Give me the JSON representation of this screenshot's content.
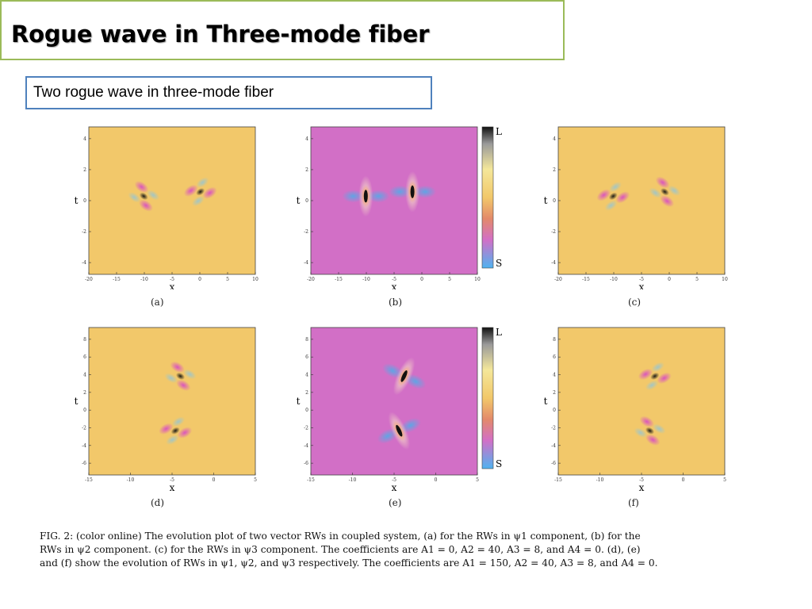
{
  "slide": {
    "title": "Rogue wave in Three-mode fiber",
    "subtitle": "Two rogue wave in three-mode fiber"
  },
  "figure": {
    "panels": [
      {
        "label": "(a)",
        "row": 1,
        "colormap": "yellow",
        "xlabel": "x",
        "ylabel": "t",
        "xticks": [
          "-20",
          "-15",
          "-10",
          "-5",
          "0",
          "5",
          "10"
        ],
        "yticks": [
          "4",
          "2",
          "0",
          "-2",
          "-4"
        ]
      },
      {
        "label": "(b)",
        "row": 1,
        "colormap": "magenta",
        "xlabel": "x",
        "ylabel": "t",
        "xticks": [
          "-20",
          "-15",
          "-10",
          "-5",
          "0",
          "5",
          "10"
        ],
        "yticks": [
          "4",
          "2",
          "0",
          "-2",
          "-4"
        ],
        "colorbar": {
          "top": "L",
          "bottom": "S"
        }
      },
      {
        "label": "(c)",
        "row": 1,
        "colormap": "yellow",
        "xlabel": "x",
        "ylabel": "t",
        "xticks": [
          "-20",
          "-15",
          "-10",
          "-5",
          "0",
          "5",
          "10"
        ],
        "yticks": [
          "4",
          "2",
          "0",
          "-2",
          "-4"
        ]
      },
      {
        "label": "(d)",
        "row": 2,
        "colormap": "yellow",
        "xlabel": "x",
        "ylabel": "t",
        "xticks": [
          "-15",
          "-10",
          "-5",
          "0",
          "5"
        ],
        "yticks": [
          "8",
          "6",
          "4",
          "2",
          "0",
          "-2",
          "-4",
          "-6"
        ]
      },
      {
        "label": "(e)",
        "row": 2,
        "colormap": "magenta",
        "xlabel": "x",
        "ylabel": "t",
        "xticks": [
          "-15",
          "-10",
          "-5",
          "0",
          "5"
        ],
        "yticks": [
          "8",
          "6",
          "4",
          "2",
          "0",
          "-2",
          "-4",
          "-6"
        ],
        "colorbar": {
          "top": "L",
          "bottom": "S"
        }
      },
      {
        "label": "(f)",
        "row": 2,
        "colormap": "yellow",
        "xlabel": "x",
        "ylabel": "t",
        "xticks": [
          "-15",
          "-10",
          "-5",
          "0",
          "5"
        ],
        "yticks": [
          "8",
          "6",
          "4",
          "2",
          "0",
          "-2",
          "-4",
          "-6"
        ]
      }
    ],
    "caption": [
      "FIG. 2: (color online) The evolution plot of two vector RWs in coupled system, (a) for the RWs in ψ1 component, (b) for the",
      "RWs in ψ2 component. (c) for the RWs in ψ3 component. The coefficients are A1 = 0, A2 = 40, A3 = 8, and A4 = 0. (d), (e)",
      "and (f) show the evolution of RWs in ψ1, ψ2, and ψ3 respectively. The coefficients are A1 = 150, A2 = 40, A3 = 8, and A4 = 0."
    ]
  },
  "colors": {
    "title_border": "#9bbb59",
    "subtitle_border": "#4f81bd",
    "plot_yellow": "#f2c86a",
    "plot_magenta": "#d26fc6"
  }
}
